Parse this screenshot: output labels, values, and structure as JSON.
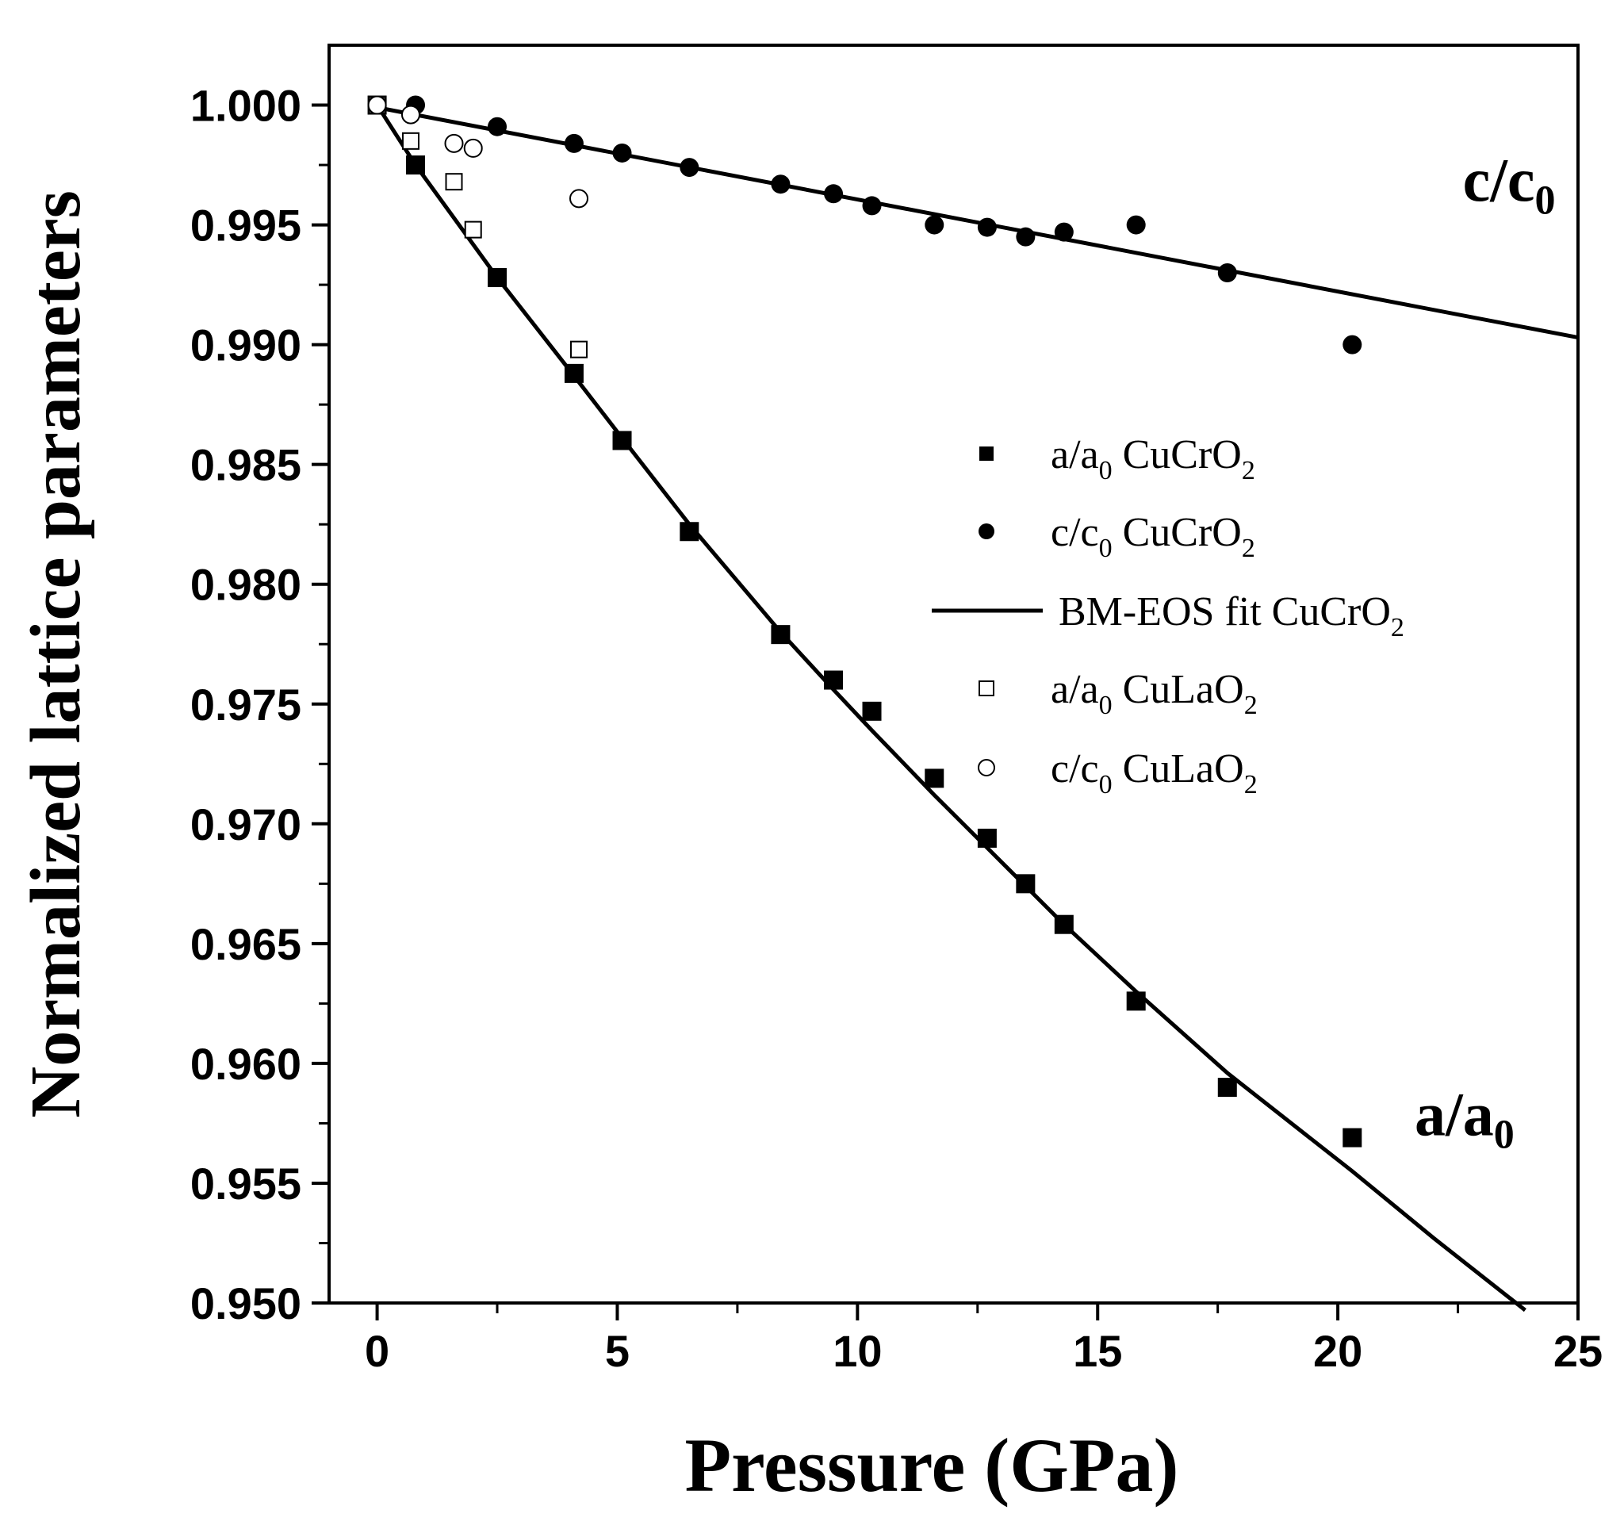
{
  "chart_data": {
    "type": "scatter",
    "title": "",
    "xlabel": "Pressure (GPa)",
    "ylabel": "Normalized lattice parameters",
    "xlim": [
      -1,
      25
    ],
    "ylim": [
      0.95,
      1.0025
    ],
    "xticks": [
      0,
      5,
      10,
      15,
      20,
      25
    ],
    "yticks": [
      1.0,
      0.995,
      0.99,
      0.985,
      0.98,
      0.975,
      0.97,
      0.965,
      0.96,
      0.955,
      0.95
    ],
    "ytick_labels": [
      "1.000",
      "0.995",
      "0.990",
      "0.985",
      "0.980",
      "0.975",
      "0.970",
      "0.965",
      "0.960",
      "0.955",
      "0.950"
    ],
    "xtick_labels": [
      "0",
      "5",
      "10",
      "15",
      "20",
      "25"
    ],
    "legend_position": "center-right",
    "series": [
      {
        "name": "a/a0 CuCrO2",
        "legend": {
          "main": "a/a",
          "sub": "0",
          "rest": " CuCrO",
          "sub2": "2"
        },
        "marker": "filled-square",
        "x": [
          0,
          0.8,
          2.5,
          4.1,
          5.1,
          6.5,
          8.4,
          9.5,
          10.3,
          11.6,
          12.7,
          13.5,
          14.3,
          15.8,
          17.7,
          20.3
        ],
        "y": [
          1.0,
          0.9975,
          0.9928,
          0.9888,
          0.986,
          0.9822,
          0.9779,
          0.976,
          0.9747,
          0.9719,
          0.9694,
          0.9675,
          0.9658,
          0.9626,
          0.959,
          0.9569
        ]
      },
      {
        "name": "c/c0 CuCrO2",
        "legend": {
          "main": "c/c",
          "sub": "0",
          "rest": " CuCrO",
          "sub2": "2"
        },
        "marker": "filled-circle",
        "x": [
          0,
          0.8,
          2.5,
          4.1,
          5.1,
          6.5,
          8.4,
          9.5,
          10.3,
          11.6,
          12.7,
          13.5,
          14.3,
          15.8,
          17.7,
          20.3
        ],
        "y": [
          1.0,
          1.0,
          0.9991,
          0.9984,
          0.998,
          0.9974,
          0.9967,
          0.9963,
          0.9958,
          0.995,
          0.9949,
          0.9945,
          0.9947,
          0.995,
          0.993,
          0.99
        ]
      },
      {
        "name": "BM-EOS fit CuCrO2",
        "legend": {
          "main": "BM-EOS fit CuCrO",
          "sub": "2",
          "rest": "",
          "sub2": ""
        },
        "marker": "line",
        "fits": [
          {
            "for": "a/a0",
            "x": [
              0,
              0.8,
              2.5,
              4.1,
              5.1,
              6.5,
              8.4,
              9.5,
              10.3,
              11.6,
              12.7,
              13.5,
              14.3,
              15.8,
              17.7,
              20.3,
              22,
              23.9
            ],
            "y": [
              1.0,
              0.9975,
              0.9928,
              0.9887,
              0.9861,
              0.9825,
              0.978,
              0.9756,
              0.9739,
              0.9712,
              0.969,
              0.9674,
              0.9658,
              0.963,
              0.9596,
              0.9555,
              0.9527,
              0.9497
            ]
          },
          {
            "for": "c/c0",
            "x": [
              0,
              25
            ],
            "y": [
              0.9999,
              0.9903
            ]
          }
        ]
      },
      {
        "name": "a/a0 CuLaO2",
        "legend": {
          "main": "a/a",
          "sub": "0",
          "rest": " CuLaO",
          "sub2": "2"
        },
        "marker": "open-square",
        "x": [
          0,
          0.7,
          1.6,
          2.0,
          4.2
        ],
        "y": [
          1.0,
          0.9985,
          0.9968,
          0.9948,
          0.9898
        ]
      },
      {
        "name": "c/c0 CuLaO2",
        "legend": {
          "main": "c/c",
          "sub": "0",
          "rest": " CuLaO",
          "sub2": "2"
        },
        "marker": "open-circle",
        "x": [
          0,
          0.7,
          1.6,
          2.0,
          4.2
        ],
        "y": [
          1.0,
          0.9996,
          0.9984,
          0.9982,
          0.9961
        ]
      }
    ],
    "annotations": [
      {
        "id": "c-label",
        "main": "c/c",
        "sub": "0",
        "x": 22.6,
        "y": 0.996
      },
      {
        "id": "a-label",
        "main": "a/a",
        "sub": "0",
        "x": 21.6,
        "y": 0.957
      }
    ]
  }
}
